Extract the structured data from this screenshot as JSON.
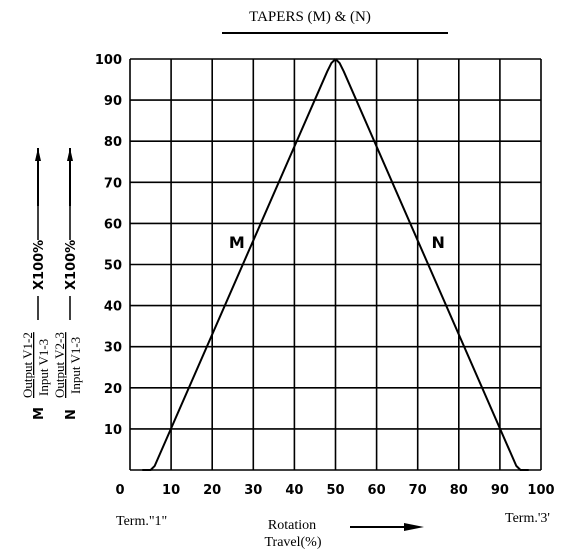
{
  "chart_data": {
    "type": "line",
    "title": "TAPERS (M) & (N)",
    "xlabel": [
      "Rotation",
      "Travel(%)"
    ],
    "x_end_labels": {
      "left": "Term.\"1\"",
      "right": "Term.'3'"
    },
    "x_ticks": [
      0,
      10,
      20,
      30,
      40,
      50,
      60,
      70,
      80,
      90,
      100
    ],
    "y_ticks": [
      10,
      20,
      30,
      40,
      50,
      60,
      70,
      80,
      90,
      100
    ],
    "xlim": [
      0,
      100
    ],
    "ylim": [
      0,
      100
    ],
    "grid": true,
    "ylabels": [
      {
        "prefix": "M",
        "numerator": "Output V1-2",
        "denominator": "Input  V1-3",
        "suffix": "X100%"
      },
      {
        "prefix": "N",
        "numerator": "Output V2-3",
        "denominator": "Input V1-3",
        "suffix": "X100%"
      }
    ],
    "series": [
      {
        "name": "M",
        "label_at": [
          26,
          54
        ],
        "x": [
          3,
          5,
          6,
          48,
          49,
          50
        ],
        "y": [
          0,
          0,
          1,
          97,
          99,
          100
        ]
      },
      {
        "name": "N",
        "label_at": [
          75,
          54
        ],
        "x": [
          50,
          51,
          52,
          94,
          95,
          97
        ],
        "y": [
          100,
          99,
          97,
          1,
          0,
          0
        ]
      }
    ]
  }
}
